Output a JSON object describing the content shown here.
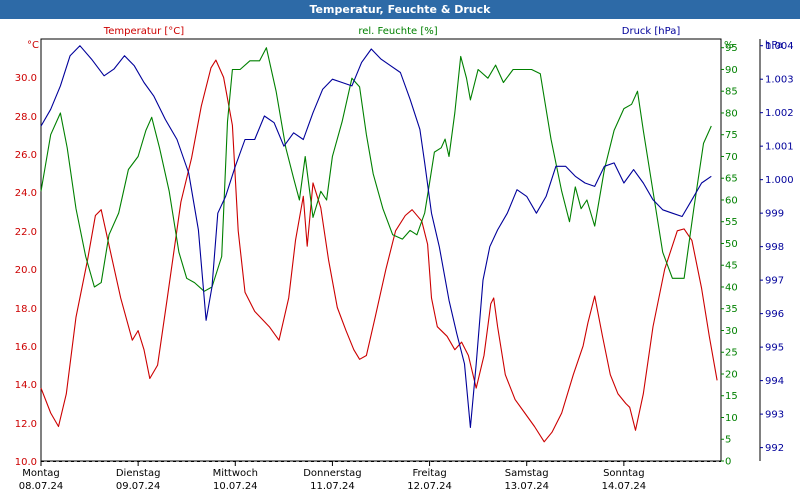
{
  "window": {
    "title": "Temperatur, Feuchte & Druck"
  },
  "colors": {
    "temperature": "#cc0000",
    "humidity": "#008000",
    "pressure": "#00009a",
    "titlebar": "#2d6aa7",
    "grid": "#000000"
  },
  "chart_data": {
    "type": "line",
    "title": "Temperatur, Feuchte & Druck",
    "grid": true,
    "x_unit": "days since Mon 08.07.24 00:00",
    "days": [
      {
        "name": "Montag",
        "date": "08.07.24"
      },
      {
        "name": "Dienstag",
        "date": "09.07.24"
      },
      {
        "name": "Mittwoch",
        "date": "10.07.24"
      },
      {
        "name": "Donnerstag",
        "date": "11.07.24"
      },
      {
        "name": "Freitag",
        "date": "12.07.24"
      },
      {
        "name": "Samstag",
        "date": "13.07.24"
      },
      {
        "name": "Sonntag",
        "date": "14.07.24"
      }
    ],
    "x_range": [
      0,
      7
    ],
    "axes": {
      "temperature": {
        "unit": "°C",
        "legend": "Temperatur [°C]",
        "range": [
          10,
          32
        ],
        "ticks": [
          "10.0",
          "12.0",
          "14.0",
          "16.0",
          "18.0",
          "20.0",
          "22.0",
          "24.0",
          "26.0",
          "28.0",
          "30.0"
        ]
      },
      "humidity": {
        "unit": "%",
        "legend": "rel. Feuchte [%]",
        "range": [
          0,
          97
        ],
        "ticks": [
          "0",
          "5",
          "10",
          "15",
          "20",
          "25",
          "30",
          "35",
          "40",
          "45",
          "50",
          "55",
          "60",
          "65",
          "70",
          "75",
          "80",
          "85",
          "90",
          "95"
        ]
      },
      "pressure": {
        "unit": "hPa",
        "legend": "Druck [hPa]",
        "range": [
          991.6,
          1004.2
        ],
        "ticks": [
          "992",
          "993",
          "994",
          "995",
          "996",
          "997",
          "998",
          "999",
          "1.000",
          "1.001",
          "1.002",
          "1.003",
          "1.004"
        ]
      }
    },
    "series": [
      {
        "name": "Temperatur",
        "axis": "temperature",
        "points": [
          [
            0,
            13.8
          ],
          [
            0.1,
            12.5
          ],
          [
            0.18,
            11.8
          ],
          [
            0.26,
            13.5
          ],
          [
            0.36,
            17.5
          ],
          [
            0.48,
            20.5
          ],
          [
            0.56,
            22.8
          ],
          [
            0.62,
            23.1
          ],
          [
            0.72,
            20.8
          ],
          [
            0.82,
            18.5
          ],
          [
            0.94,
            16.3
          ],
          [
            1.0,
            16.8
          ],
          [
            1.06,
            15.8
          ],
          [
            1.12,
            14.3
          ],
          [
            1.2,
            15.0
          ],
          [
            1.3,
            18.5
          ],
          [
            1.44,
            23.5
          ],
          [
            1.55,
            25.8
          ],
          [
            1.65,
            28.5
          ],
          [
            1.75,
            30.5
          ],
          [
            1.8,
            30.9
          ],
          [
            1.88,
            30.0
          ],
          [
            1.97,
            27.5
          ],
          [
            2.03,
            22.0
          ],
          [
            2.1,
            18.8
          ],
          [
            2.2,
            17.8
          ],
          [
            2.35,
            17.0
          ],
          [
            2.45,
            16.3
          ],
          [
            2.55,
            18.5
          ],
          [
            2.62,
            21.5
          ],
          [
            2.7,
            23.8
          ],
          [
            2.74,
            21.2
          ],
          [
            2.8,
            24.5
          ],
          [
            2.88,
            23.2
          ],
          [
            2.96,
            20.5
          ],
          [
            3.05,
            18.0
          ],
          [
            3.14,
            16.8
          ],
          [
            3.22,
            15.8
          ],
          [
            3.28,
            15.3
          ],
          [
            3.35,
            15.5
          ],
          [
            3.44,
            17.5
          ],
          [
            3.55,
            20.0
          ],
          [
            3.65,
            22.0
          ],
          [
            3.75,
            22.8
          ],
          [
            3.82,
            23.1
          ],
          [
            3.92,
            22.5
          ],
          [
            3.98,
            21.3
          ],
          [
            4.02,
            18.5
          ],
          [
            4.08,
            17.0
          ],
          [
            4.18,
            16.5
          ],
          [
            4.26,
            15.8
          ],
          [
            4.33,
            16.2
          ],
          [
            4.4,
            15.5
          ],
          [
            4.48,
            13.8
          ],
          [
            4.56,
            15.5
          ],
          [
            4.63,
            18.2
          ],
          [
            4.66,
            18.5
          ],
          [
            4.7,
            17.0
          ],
          [
            4.78,
            14.5
          ],
          [
            4.88,
            13.2
          ],
          [
            4.98,
            12.5
          ],
          [
            5.08,
            11.8
          ],
          [
            5.18,
            11.0
          ],
          [
            5.26,
            11.5
          ],
          [
            5.36,
            12.5
          ],
          [
            5.48,
            14.5
          ],
          [
            5.58,
            16.0
          ],
          [
            5.63,
            17.2
          ],
          [
            5.7,
            18.6
          ],
          [
            5.78,
            16.5
          ],
          [
            5.86,
            14.5
          ],
          [
            5.94,
            13.5
          ],
          [
            6.02,
            13.0
          ],
          [
            6.06,
            12.8
          ],
          [
            6.12,
            11.6
          ],
          [
            6.2,
            13.5
          ],
          [
            6.3,
            17.0
          ],
          [
            6.42,
            20.0
          ],
          [
            6.55,
            22.0
          ],
          [
            6.62,
            22.1
          ],
          [
            6.7,
            21.5
          ],
          [
            6.8,
            19.0
          ],
          [
            6.88,
            16.5
          ],
          [
            6.96,
            14.2
          ]
        ]
      },
      {
        "name": "rel. Feuchte",
        "axis": "humidity",
        "points": [
          [
            0,
            62
          ],
          [
            0.1,
            75
          ],
          [
            0.2,
            80
          ],
          [
            0.27,
            72
          ],
          [
            0.36,
            58
          ],
          [
            0.46,
            47
          ],
          [
            0.55,
            40
          ],
          [
            0.62,
            41
          ],
          [
            0.7,
            52
          ],
          [
            0.8,
            57
          ],
          [
            0.9,
            67
          ],
          [
            1.0,
            70
          ],
          [
            1.08,
            76
          ],
          [
            1.14,
            79
          ],
          [
            1.22,
            72
          ],
          [
            1.32,
            62
          ],
          [
            1.42,
            48
          ],
          [
            1.5,
            42
          ],
          [
            1.58,
            41
          ],
          [
            1.68,
            39
          ],
          [
            1.76,
            40
          ],
          [
            1.86,
            47
          ],
          [
            1.92,
            78
          ],
          [
            1.97,
            90
          ],
          [
            2.05,
            90
          ],
          [
            2.15,
            92
          ],
          [
            2.25,
            92
          ],
          [
            2.32,
            95
          ],
          [
            2.42,
            85
          ],
          [
            2.52,
            72
          ],
          [
            2.6,
            65
          ],
          [
            2.66,
            60
          ],
          [
            2.72,
            70
          ],
          [
            2.8,
            56
          ],
          [
            2.88,
            62
          ],
          [
            2.94,
            60
          ],
          [
            3.0,
            70
          ],
          [
            3.1,
            78
          ],
          [
            3.2,
            88
          ],
          [
            3.28,
            86
          ],
          [
            3.35,
            75
          ],
          [
            3.42,
            66
          ],
          [
            3.52,
            58
          ],
          [
            3.62,
            52
          ],
          [
            3.72,
            51
          ],
          [
            3.8,
            53
          ],
          [
            3.87,
            52
          ],
          [
            3.95,
            57
          ],
          [
            4.0,
            64
          ],
          [
            4.05,
            71
          ],
          [
            4.12,
            72
          ],
          [
            4.16,
            74
          ],
          [
            4.2,
            70
          ],
          [
            4.26,
            80
          ],
          [
            4.32,
            93
          ],
          [
            4.38,
            88
          ],
          [
            4.42,
            83
          ],
          [
            4.5,
            90
          ],
          [
            4.6,
            88
          ],
          [
            4.68,
            91
          ],
          [
            4.76,
            87
          ],
          [
            4.86,
            90
          ],
          [
            4.96,
            90
          ],
          [
            5.05,
            90
          ],
          [
            5.14,
            89
          ],
          [
            5.25,
            74
          ],
          [
            5.36,
            62
          ],
          [
            5.44,
            55
          ],
          [
            5.5,
            63
          ],
          [
            5.56,
            58
          ],
          [
            5.62,
            60
          ],
          [
            5.7,
            54
          ],
          [
            5.8,
            67
          ],
          [
            5.9,
            76
          ],
          [
            6.0,
            81
          ],
          [
            6.08,
            82
          ],
          [
            6.14,
            85
          ],
          [
            6.2,
            76
          ],
          [
            6.3,
            62
          ],
          [
            6.4,
            48
          ],
          [
            6.5,
            42
          ],
          [
            6.62,
            42
          ],
          [
            6.72,
            58
          ],
          [
            6.82,
            73
          ],
          [
            6.9,
            77
          ]
        ]
      },
      {
        "name": "Druck",
        "axis": "pressure",
        "points": [
          [
            0,
            1001.6
          ],
          [
            0.1,
            1002.1
          ],
          [
            0.2,
            1002.8
          ],
          [
            0.3,
            1003.7
          ],
          [
            0.4,
            1004.0
          ],
          [
            0.52,
            1003.6
          ],
          [
            0.65,
            1003.1
          ],
          [
            0.75,
            1003.3
          ],
          [
            0.86,
            1003.7
          ],
          [
            0.96,
            1003.4
          ],
          [
            1.06,
            1002.9
          ],
          [
            1.16,
            1002.5
          ],
          [
            1.28,
            1001.8
          ],
          [
            1.4,
            1001.2
          ],
          [
            1.52,
            1000.2
          ],
          [
            1.62,
            998.5
          ],
          [
            1.7,
            995.8
          ],
          [
            1.76,
            996.8
          ],
          [
            1.82,
            999.0
          ],
          [
            1.9,
            999.5
          ],
          [
            2.0,
            1000.4
          ],
          [
            2.1,
            1001.2
          ],
          [
            2.2,
            1001.2
          ],
          [
            2.3,
            1001.9
          ],
          [
            2.4,
            1001.7
          ],
          [
            2.5,
            1001.0
          ],
          [
            2.6,
            1001.4
          ],
          [
            2.7,
            1001.2
          ],
          [
            2.8,
            1002.0
          ],
          [
            2.9,
            1002.7
          ],
          [
            3.0,
            1003.0
          ],
          [
            3.1,
            1002.9
          ],
          [
            3.2,
            1002.8
          ],
          [
            3.3,
            1003.5
          ],
          [
            3.4,
            1003.9
          ],
          [
            3.5,
            1003.6
          ],
          [
            3.6,
            1003.4
          ],
          [
            3.7,
            1003.2
          ],
          [
            3.8,
            1002.4
          ],
          [
            3.9,
            1001.5
          ],
          [
            3.95,
            1000.5
          ],
          [
            4.02,
            999.0
          ],
          [
            4.1,
            998.0
          ],
          [
            4.2,
            996.4
          ],
          [
            4.28,
            995.4
          ],
          [
            4.36,
            994.5
          ],
          [
            4.42,
            992.6
          ],
          [
            4.48,
            994.5
          ],
          [
            4.55,
            997.0
          ],
          [
            4.62,
            998.0
          ],
          [
            4.7,
            998.5
          ],
          [
            4.8,
            999.0
          ],
          [
            4.9,
            999.7
          ],
          [
            5.0,
            999.5
          ],
          [
            5.1,
            999.0
          ],
          [
            5.2,
            999.5
          ],
          [
            5.3,
            1000.4
          ],
          [
            5.4,
            1000.4
          ],
          [
            5.5,
            1000.1
          ],
          [
            5.6,
            999.9
          ],
          [
            5.7,
            999.8
          ],
          [
            5.8,
            1000.4
          ],
          [
            5.9,
            1000.5
          ],
          [
            6.0,
            999.9
          ],
          [
            6.1,
            1000.3
          ],
          [
            6.2,
            999.9
          ],
          [
            6.3,
            999.4
          ],
          [
            6.4,
            999.1
          ],
          [
            6.5,
            999.0
          ],
          [
            6.6,
            998.9
          ],
          [
            6.7,
            999.4
          ],
          [
            6.8,
            999.9
          ],
          [
            6.9,
            1000.1
          ]
        ]
      }
    ]
  }
}
